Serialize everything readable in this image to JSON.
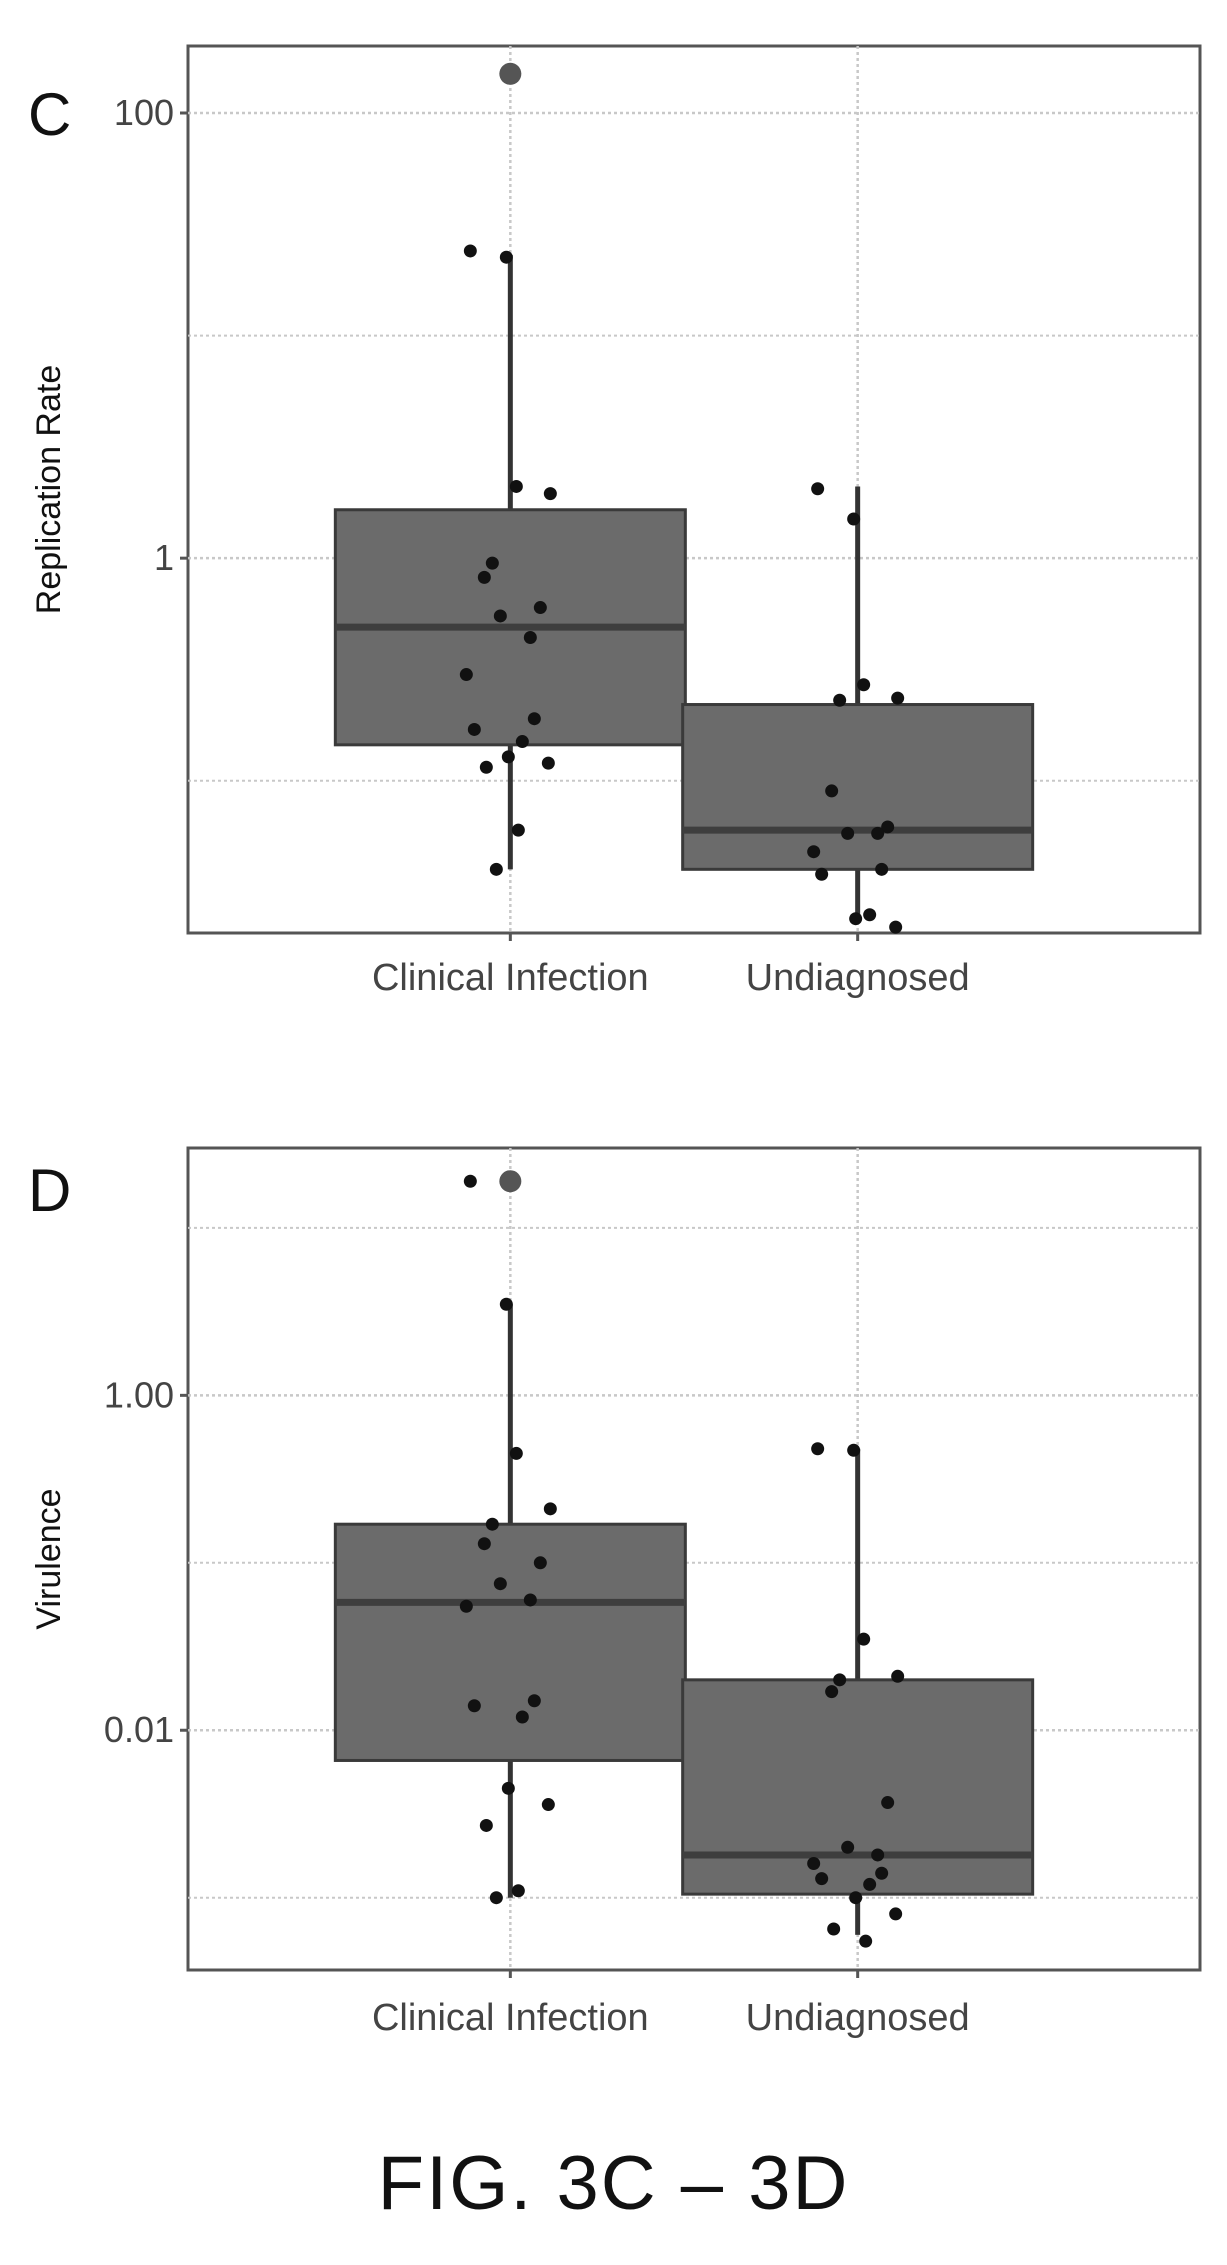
{
  "figure": {
    "caption": "FIG. 3C – 3D"
  },
  "colors": {
    "box": "#6b6b6b",
    "median": "#3e3e3e",
    "point": "#111111",
    "outlier": "#555555",
    "grid": "#c8c8c8",
    "frame": "#555555",
    "text": "#444444"
  },
  "chart_data": [
    {
      "panel": "C",
      "type": "box",
      "ylabel": "Replication Rate",
      "xlabel": "",
      "yscale": "log10",
      "ylim": [
        0.0207,
        200
      ],
      "y_ticks": [
        1,
        100
      ],
      "y_tick_labels": [
        "1",
        "100"
      ],
      "grid": true,
      "categories": [
        "Clinical Infection",
        "Undiagnosed"
      ],
      "series": [
        {
          "category": "Clinical Infection",
          "box": {
            "whisker_low": 0.04,
            "q1": 0.145,
            "median": 0.49,
            "q3": 1.65,
            "whisker_high": 23
          },
          "outliers": [
            150
          ],
          "points": [
            24,
            22.5,
            2.1,
            1.95,
            0.95,
            0.82,
            0.6,
            0.55,
            0.44,
            0.3,
            0.19,
            0.17,
            0.15,
            0.128,
            0.12,
            0.115,
            0.06,
            0.04
          ]
        },
        {
          "category": "Undiagnosed",
          "box": {
            "whisker_low": 0.025,
            "q1": 0.04,
            "median": 0.06,
            "q3": 0.22,
            "whisker_high": 2.1
          },
          "outliers": [],
          "points": [
            2.05,
            1.5,
            0.27,
            0.235,
            0.23,
            0.09,
            0.062,
            0.058,
            0.058,
            0.048,
            0.04,
            0.038,
            0.025,
            0.024,
            0.022
          ]
        }
      ]
    },
    {
      "panel": "D",
      "type": "box",
      "ylabel": "Virulence",
      "xlabel": "",
      "yscale": "log10",
      "ylim": [
        0.00037,
        30
      ],
      "y_ticks": [
        0.01,
        1
      ],
      "y_tick_labels": [
        "0.01",
        "1.00"
      ],
      "grid": true,
      "categories": [
        "Clinical Infection",
        "Undiagnosed"
      ],
      "series": [
        {
          "category": "Clinical Infection",
          "box": {
            "whisker_low": 0.001,
            "q1": 0.0066,
            "median": 0.058,
            "q3": 0.17,
            "whisker_high": 3.5
          },
          "outliers": [
            19
          ],
          "points": [
            19,
            3.5,
            0.45,
            0.21,
            0.17,
            0.13,
            0.1,
            0.075,
            0.06,
            0.055,
            0.015,
            0.014,
            0.012,
            0.0045,
            0.0036,
            0.0027,
            0.0011,
            0.001
          ]
        },
        {
          "category": "Undiagnosed",
          "box": {
            "whisker_low": 0.0006,
            "q1": 0.00105,
            "median": 0.0018,
            "q3": 0.02,
            "whisker_high": 0.48
          },
          "outliers": [],
          "points": [
            0.48,
            0.47,
            0.035,
            0.021,
            0.02,
            0.017,
            0.0037,
            0.002,
            0.0018,
            0.0016,
            0.0014,
            0.0013,
            0.0012,
            0.001,
            0.0008,
            0.00065,
            0.00055
          ]
        }
      ]
    }
  ]
}
